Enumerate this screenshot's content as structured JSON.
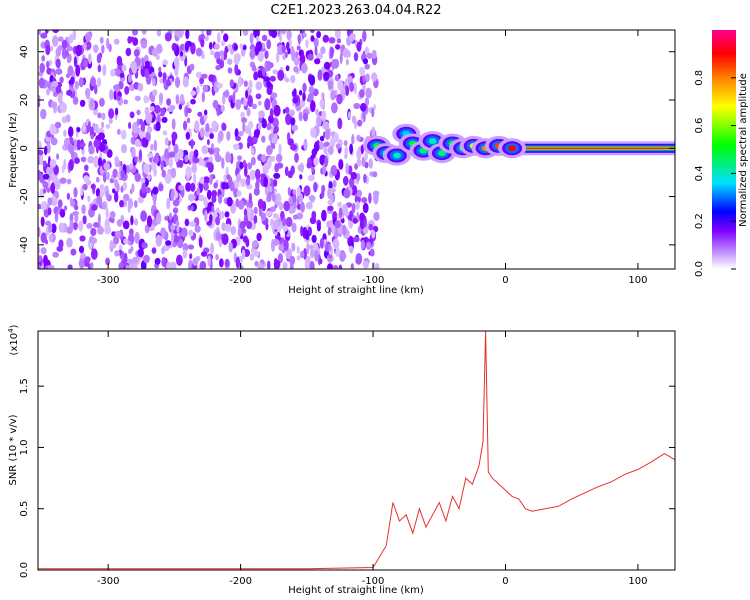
{
  "title": "C2E1.2023.263.04.04.R22",
  "chart_data": [
    {
      "type": "heatmap",
      "xlabel": "Height of straight line (km)",
      "ylabel": "Frequency (Hz)",
      "xlim": [
        -353,
        128
      ],
      "ylim": [
        -50,
        49
      ],
      "x_ticks": [
        -300,
        -200,
        -100,
        0,
        100
      ],
      "y_ticks": [
        -40,
        -20,
        0,
        20,
        40
      ],
      "noise_region_x": [
        -353,
        -100
      ],
      "signal_line_frequency": 0,
      "signal_region_x": [
        -100,
        128
      ],
      "bursts": [
        {
          "x": -97,
          "y": 1,
          "amp": 0.5
        },
        {
          "x": -90,
          "y": -2,
          "amp": 0.45
        },
        {
          "x": -82,
          "y": -3,
          "amp": 0.4
        },
        {
          "x": -75,
          "y": 6,
          "amp": 0.35
        },
        {
          "x": -70,
          "y": 2,
          "amp": 0.5
        },
        {
          "x": -62,
          "y": -1,
          "amp": 0.45
        },
        {
          "x": -55,
          "y": 3,
          "amp": 0.4
        },
        {
          "x": -48,
          "y": -2,
          "amp": 0.45
        },
        {
          "x": -40,
          "y": 2,
          "amp": 0.5
        },
        {
          "x": -32,
          "y": 0,
          "amp": 0.55
        },
        {
          "x": -24,
          "y": 1,
          "amp": 0.7
        },
        {
          "x": -15,
          "y": 0,
          "amp": 0.8
        },
        {
          "x": -5,
          "y": 1,
          "amp": 0.85
        },
        {
          "x": 5,
          "y": 0,
          "amp": 0.9
        }
      ],
      "colorbar": {
        "label": "Normalized spectral amplitude",
        "range": [
          0,
          1
        ],
        "ticks": [
          0.0,
          0.2,
          0.4,
          0.6,
          0.8
        ],
        "colors": [
          "#ffffff",
          "#c9a0ff",
          "#8000ff",
          "#0000ff",
          "#00e0ff",
          "#00ff00",
          "#ffff00",
          "#ff8000",
          "#ff0000",
          "#ff0090"
        ]
      }
    },
    {
      "type": "line",
      "xlabel": "Height of straight line (km)",
      "ylabel": "SNR (10 * v/v)",
      "exponent_label": "(x10",
      "exponent_power": "4",
      "exponent_close": ")",
      "xlim": [
        -353,
        128
      ],
      "ylim": [
        0,
        1.95
      ],
      "x_ticks": [
        -300,
        -200,
        -100,
        0,
        100
      ],
      "y_ticks": [
        0.0,
        0.5,
        1.0,
        1.5
      ],
      "color": "#e8302c",
      "series": [
        {
          "x": [
            -353,
            -300,
            -250,
            -200,
            -150,
            -100,
            -90,
            -85,
            -80,
            -75,
            -70,
            -65,
            -60,
            -55,
            -50,
            -45,
            -40,
            -35,
            -30,
            -25,
            -20,
            -17,
            -15,
            -13,
            -10,
            -5,
            0,
            5,
            10,
            15,
            20,
            30,
            40,
            50,
            60,
            70,
            80,
            90,
            100,
            110,
            120,
            128
          ],
          "y": [
            0.01,
            0.01,
            0.01,
            0.01,
            0.01,
            0.02,
            0.2,
            0.55,
            0.4,
            0.45,
            0.3,
            0.5,
            0.35,
            0.45,
            0.55,
            0.4,
            0.6,
            0.5,
            0.75,
            0.7,
            0.85,
            1.05,
            1.95,
            0.8,
            0.75,
            0.7,
            0.65,
            0.6,
            0.58,
            0.5,
            0.48,
            0.5,
            0.52,
            0.58,
            0.63,
            0.68,
            0.72,
            0.78,
            0.82,
            0.88,
            0.95,
            0.9
          ]
        }
      ]
    }
  ]
}
